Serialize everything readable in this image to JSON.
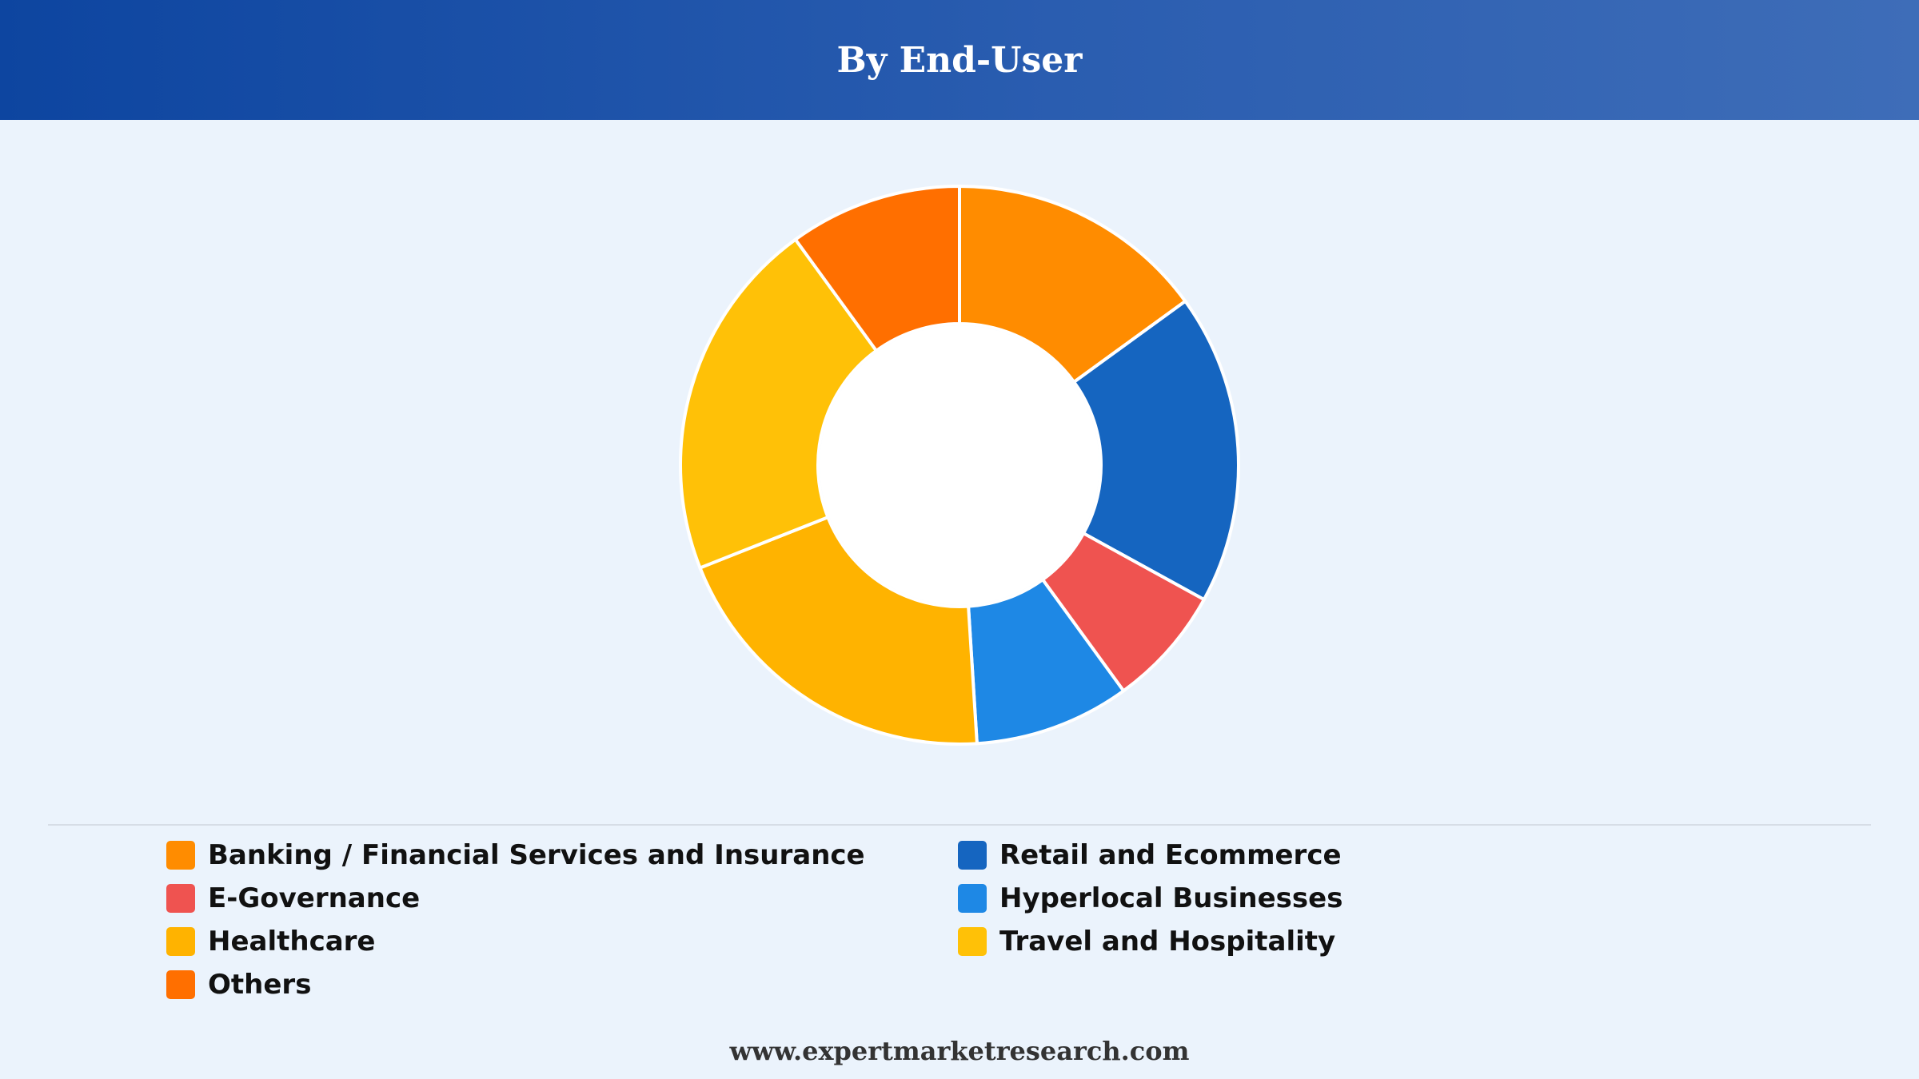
{
  "header": {
    "title": "By End-User"
  },
  "chart_data": {
    "type": "pie",
    "title": "By End-User",
    "donut": true,
    "legend_position": "bottom",
    "categories": [
      "Banking / Financial Services and Insurance",
      "Retail and Ecommerce",
      "E-Governance",
      "Hyperlocal Businesses",
      "Healthcare",
      "Travel and Hospitality",
      "Others"
    ],
    "values": [
      15,
      18,
      7,
      9,
      20,
      21,
      10
    ],
    "colors": [
      "#ff8c00",
      "#1565c0",
      "#ef5350",
      "#1e88e5",
      "#ffb300",
      "#ffc107",
      "#ff6f00"
    ]
  },
  "footer": {
    "website": "www.expertmarketresearch.com"
  }
}
